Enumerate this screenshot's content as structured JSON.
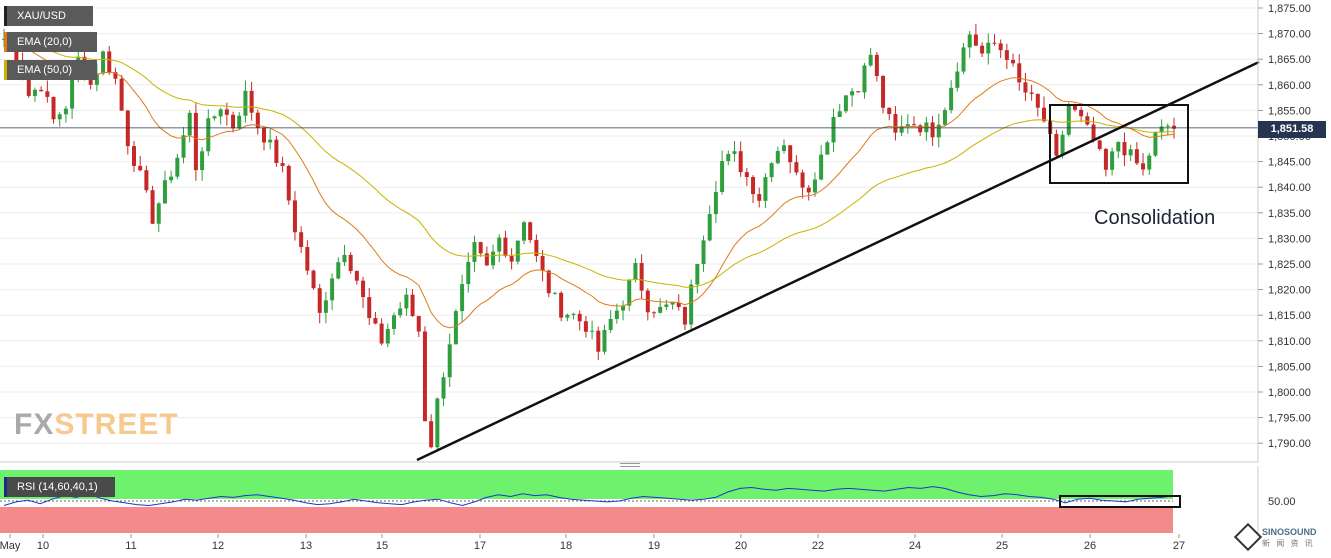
{
  "symbol": "XAU/USD",
  "indicators": {
    "ema20": "EMA (20,0)",
    "ema50": "EMA (50,0)",
    "rsi": "RSI (14,60,40,1)"
  },
  "logo": {
    "part1": "FX",
    "part2": "STREET"
  },
  "annotation": "Consolidation",
  "current_price_label": "1,851.58",
  "watermark": {
    "brand": "SINOSOUND",
    "sub": "新 闻 资 讯"
  },
  "colors": {
    "ema20": "#e07a1a",
    "ema50": "#c8b400",
    "bull": "#2e9e3e",
    "bear": "#c62828",
    "rsi_line": "#1f35c9",
    "rsi_upper": "#6ef26e",
    "rsi_lower": "#f58a8a",
    "price_line": "#263351"
  },
  "chart_data": {
    "type": "candlestick",
    "y_axis_ticks": [
      "1,875.00",
      "1,870.00",
      "1,865.00",
      "1,860.00",
      "1,855.00",
      "1,850.00",
      "1,845.00",
      "1,840.00",
      "1,835.00",
      "1,830.00",
      "1,825.00",
      "1,820.00",
      "1,815.00",
      "1,810.00",
      "1,805.00",
      "1,800.00",
      "1,795.00",
      "1,790.00"
    ],
    "x_axis_labels": [
      "May",
      "10",
      "11",
      "12",
      "13",
      "15",
      "17",
      "18",
      "19",
      "20",
      "22",
      "24",
      "25",
      "26",
      "27"
    ],
    "ylim": [
      1786,
      1876
    ],
    "current_price": 1851.58,
    "rsi_tick": "50.00",
    "ohlc_path": [
      [
        0,
        1869
      ],
      [
        2,
        1866
      ],
      [
        4,
        1858
      ],
      [
        6,
        1860
      ],
      [
        8,
        1853
      ],
      [
        10,
        1856
      ],
      [
        12,
        1865
      ],
      [
        14,
        1860
      ],
      [
        16,
        1866
      ],
      [
        18,
        1861
      ],
      [
        20,
        1849
      ],
      [
        22,
        1842
      ],
      [
        24,
        1834
      ],
      [
        26,
        1840
      ],
      [
        28,
        1846
      ],
      [
        30,
        1854
      ],
      [
        31,
        1844
      ],
      [
        33,
        1852
      ],
      [
        35,
        1856
      ],
      [
        37,
        1852
      ],
      [
        39,
        1858
      ],
      [
        41,
        1852
      ],
      [
        43,
        1848
      ],
      [
        45,
        1843
      ],
      [
        47,
        1832
      ],
      [
        49,
        1824
      ],
      [
        51,
        1815
      ],
      [
        53,
        1823
      ],
      [
        55,
        1828
      ],
      [
        57,
        1822
      ],
      [
        59,
        1814
      ],
      [
        61,
        1810
      ],
      [
        63,
        1815
      ],
      [
        65,
        1818
      ],
      [
        67,
        1812
      ],
      [
        68,
        1795
      ],
      [
        69,
        1790
      ],
      [
        70,
        1798
      ],
      [
        72,
        1810
      ],
      [
        74,
        1820
      ],
      [
        76,
        1828
      ],
      [
        78,
        1824
      ],
      [
        80,
        1830
      ],
      [
        82,
        1826
      ],
      [
        84,
        1834
      ],
      [
        86,
        1826
      ],
      [
        88,
        1820
      ],
      [
        90,
        1816
      ],
      [
        92,
        1815
      ],
      [
        94,
        1813
      ],
      [
        96,
        1808
      ],
      [
        98,
        1814
      ],
      [
        100,
        1818
      ],
      [
        102,
        1824
      ],
      [
        104,
        1817
      ],
      [
        106,
        1816
      ],
      [
        108,
        1817
      ],
      [
        110,
        1814
      ],
      [
        112,
        1826
      ],
      [
        114,
        1836
      ],
      [
        116,
        1845
      ],
      [
        118,
        1846
      ],
      [
        120,
        1842
      ],
      [
        122,
        1838
      ],
      [
        124,
        1846
      ],
      [
        126,
        1849
      ],
      [
        128,
        1842
      ],
      [
        130,
        1840
      ],
      [
        132,
        1846
      ],
      [
        134,
        1854
      ],
      [
        136,
        1858
      ],
      [
        138,
        1860
      ],
      [
        140,
        1866
      ],
      [
        142,
        1856
      ],
      [
        144,
        1850
      ],
      [
        146,
        1853
      ],
      [
        148,
        1852
      ],
      [
        150,
        1851
      ],
      [
        152,
        1856
      ],
      [
        154,
        1864
      ],
      [
        156,
        1870
      ],
      [
        158,
        1866
      ],
      [
        160,
        1868
      ],
      [
        162,
        1866
      ],
      [
        164,
        1860
      ],
      [
        166,
        1857
      ],
      [
        168,
        1853
      ],
      [
        170,
        1845
      ],
      [
        172,
        1856
      ],
      [
        174,
        1853
      ],
      [
        176,
        1849
      ],
      [
        178,
        1843
      ],
      [
        180,
        1849
      ],
      [
        182,
        1846
      ],
      [
        184,
        1843
      ],
      [
        186,
        1850
      ],
      [
        188,
        1852
      ],
      [
        189,
        1851.58
      ]
    ],
    "rsi_ylim": [
      0,
      100
    ],
    "rsi_upper_zone": [
      60,
      100
    ],
    "rsi_lower_zone": [
      0,
      40
    ],
    "rsi_values": [
      45,
      49,
      51,
      47,
      52,
      56,
      54,
      58,
      53,
      50,
      48,
      46,
      45,
      47,
      49,
      52,
      51,
      53,
      55,
      54,
      56,
      57,
      55,
      53,
      51,
      48,
      46,
      47,
      49,
      52,
      50,
      48,
      47,
      46,
      49,
      51,
      52,
      48,
      45,
      49,
      54,
      57,
      55,
      58,
      56,
      57,
      54,
      52,
      51,
      50,
      49,
      50,
      53,
      55,
      54,
      53,
      52,
      51,
      52,
      54,
      60,
      64,
      65,
      63,
      62,
      64,
      63,
      62,
      61,
      63,
      64,
      63,
      62,
      61,
      63,
      65,
      64,
      66,
      64,
      60,
      57,
      55,
      56,
      58,
      57,
      55,
      54,
      52,
      48,
      52,
      53,
      51,
      50,
      49,
      52,
      53,
      54,
      56
    ]
  }
}
